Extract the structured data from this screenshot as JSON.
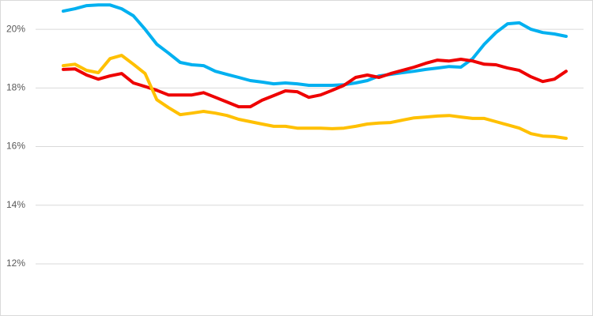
{
  "chart_data": {
    "type": "line",
    "categories": [
      null,
      null,
      null,
      null,
      null,
      null,
      null,
      null,
      null,
      null,
      null,
      null,
      null,
      null,
      null,
      null,
      null,
      null,
      null,
      null,
      null,
      null,
      null,
      null,
      null,
      null,
      null,
      null,
      null,
      null,
      null,
      null,
      null,
      null,
      null,
      null,
      null,
      null,
      null,
      null,
      null,
      null,
      null,
      null
    ],
    "series": [
      {
        "color": "#00b0f0",
        "values": [
          20.62,
          20.7,
          20.81,
          20.83,
          20.83,
          20.7,
          20.46,
          20.0,
          19.49,
          19.19,
          18.87,
          18.79,
          18.76,
          18.57,
          18.46,
          18.36,
          18.25,
          18.2,
          18.14,
          18.17,
          18.14,
          18.09,
          18.09,
          18.09,
          18.11,
          18.17,
          18.25,
          18.41,
          18.46,
          18.52,
          18.57,
          18.63,
          18.68,
          18.73,
          18.71,
          19.0,
          19.49,
          19.89,
          20.19,
          20.22,
          20.0,
          19.89,
          19.84,
          19.76
        ]
      },
      {
        "color": "#ee0000",
        "values": [
          18.63,
          18.65,
          18.44,
          18.3,
          18.41,
          18.49,
          18.17,
          18.05,
          17.92,
          17.76,
          17.76,
          17.76,
          17.84,
          17.68,
          17.52,
          17.36,
          17.36,
          17.58,
          17.74,
          17.9,
          17.87,
          17.68,
          17.76,
          17.92,
          18.09,
          18.36,
          18.44,
          18.36,
          18.49,
          18.6,
          18.71,
          18.84,
          18.95,
          18.92,
          18.98,
          18.92,
          18.81,
          18.79,
          18.68,
          18.6,
          18.38,
          18.22,
          18.3,
          18.57
        ]
      },
      {
        "color": "#ffc000",
        "values": [
          18.76,
          18.81,
          18.6,
          18.52,
          19.0,
          19.11,
          18.81,
          18.49,
          17.6,
          17.33,
          17.09,
          17.14,
          17.2,
          17.14,
          17.06,
          16.93,
          16.85,
          16.77,
          16.69,
          16.69,
          16.63,
          16.63,
          16.63,
          16.61,
          16.63,
          16.69,
          16.77,
          16.8,
          16.82,
          16.9,
          16.98,
          17.01,
          17.04,
          17.06,
          17.01,
          16.96,
          16.96,
          16.85,
          16.74,
          16.63,
          16.44,
          16.36,
          16.34,
          16.28
        ]
      }
    ],
    "ylim": [
      10.22,
      21.0
    ],
    "yticks": [
      {
        "value": 12,
        "label": "12%"
      },
      {
        "value": 14,
        "label": "14%"
      },
      {
        "value": 16,
        "label": "16%"
      },
      {
        "value": 18,
        "label": "18%"
      },
      {
        "value": 20,
        "label": "20%"
      }
    ],
    "grid": true
  }
}
